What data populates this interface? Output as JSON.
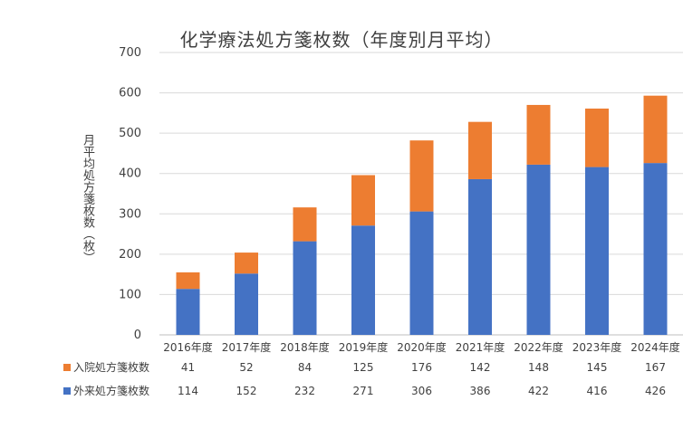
{
  "chart_data": {
    "type": "bar",
    "stacked": true,
    "title": "化学療法処方箋枚数（年度別月平均）",
    "xlabel": "",
    "ylabel": "月平均処方箋枚数（枚）",
    "ylim": [
      0,
      700
    ],
    "yticks": [
      0,
      100,
      200,
      300,
      400,
      500,
      600,
      700
    ],
    "grid": true,
    "legend": "data-table-bottom",
    "categories": [
      "2016年度",
      "2017年度",
      "2018年度",
      "2019年度",
      "2020年度",
      "2021年度",
      "2022年度",
      "2023年度",
      "2024年度"
    ],
    "series": [
      {
        "name": "外来処方箋枚数",
        "color": "#4472C4",
        "values": [
          114,
          152,
          232,
          271,
          306,
          386,
          422,
          416,
          426
        ]
      },
      {
        "name": "入院処方箋枚数",
        "color": "#ED7D31",
        "values": [
          41,
          52,
          84,
          125,
          176,
          142,
          148,
          145,
          167
        ]
      }
    ],
    "table_order": [
      1,
      0
    ]
  }
}
